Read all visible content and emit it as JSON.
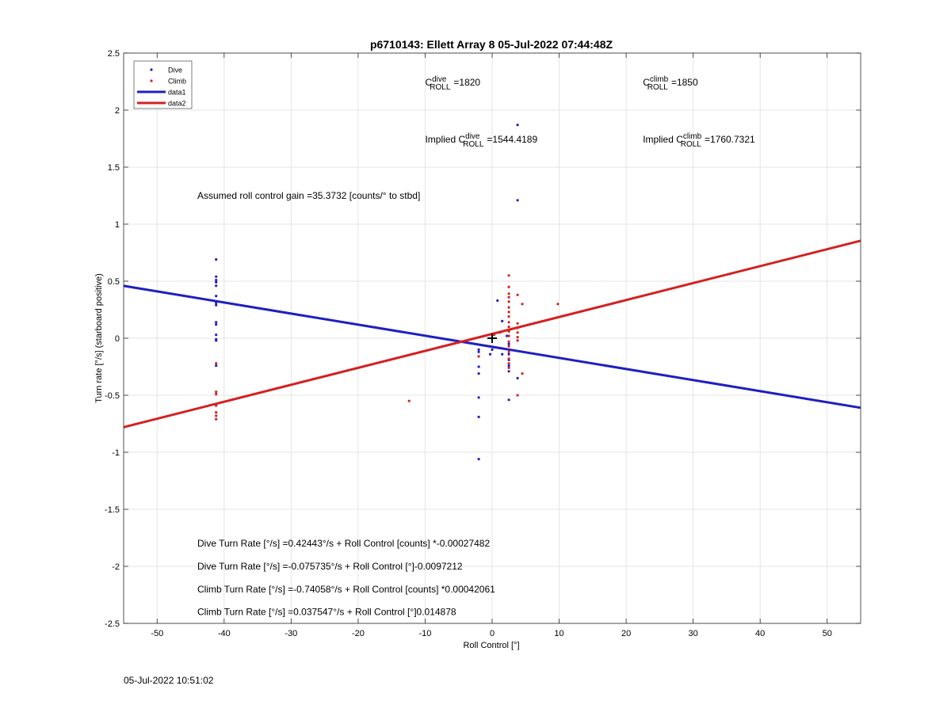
{
  "chart_data": {
    "type": "scatter",
    "title": "p6710143: Ellett Array 8 05-Jul-2022 07:44:48Z",
    "xlabel": "Roll Control [°]",
    "ylabel": "Turn rate [°/s] (starboard positive)",
    "xlim": [
      -55,
      55
    ],
    "ylim": [
      -2.5,
      2.5
    ],
    "xticks": [
      -50,
      -40,
      -30,
      -20,
      -10,
      0,
      10,
      20,
      30,
      40,
      50
    ],
    "yticks": [
      -2.5,
      -2,
      -1.5,
      -1,
      -0.5,
      0,
      0.5,
      1,
      1.5,
      2,
      2.5
    ],
    "grid": true,
    "legend_position": "top-left",
    "series": [
      {
        "name": "Dive",
        "kind": "points",
        "color": "#1f1fbf",
        "points": [
          [
            -41.2,
            0.69
          ],
          [
            -41.2,
            0.54
          ],
          [
            -41.2,
            0.51
          ],
          [
            -41.2,
            0.49
          ],
          [
            -41.2,
            0.46
          ],
          [
            -41.2,
            0.37
          ],
          [
            -41.2,
            0.31
          ],
          [
            -41.2,
            0.29
          ],
          [
            -41.2,
            0.14
          ],
          [
            -41.2,
            0.12
          ],
          [
            -41.2,
            0.03
          ],
          [
            -41.2,
            -0.01
          ],
          [
            -41.2,
            -0.02
          ],
          [
            -41.2,
            -0.24
          ],
          [
            -2,
            -0.1
          ],
          [
            -2,
            -0.12
          ],
          [
            -2,
            -0.25
          ],
          [
            -2,
            -0.31
          ],
          [
            -2,
            -0.52
          ],
          [
            -2,
            -0.69
          ],
          [
            -2,
            -1.06
          ],
          [
            0.8,
            0.33
          ],
          [
            1.5,
            0.15
          ],
          [
            2.2,
            0.02
          ],
          [
            2.5,
            -0.05
          ],
          [
            2.5,
            -0.14
          ],
          [
            2.5,
            -0.19
          ],
          [
            2.5,
            -0.24
          ],
          [
            2.5,
            -0.29
          ],
          [
            2.5,
            -0.54
          ],
          [
            0,
            -0.1
          ],
          [
            -0.3,
            -0.14
          ],
          [
            1.5,
            -0.14
          ],
          [
            3.8,
            1.87
          ],
          [
            3.8,
            1.21
          ],
          [
            3.8,
            -0.35
          ]
        ]
      },
      {
        "name": "Climb",
        "kind": "points",
        "color": "#d42020",
        "points": [
          [
            -41.2,
            -0.22
          ],
          [
            -41.2,
            -0.47
          ],
          [
            -41.2,
            -0.49
          ],
          [
            -41.2,
            -0.59
          ],
          [
            -41.2,
            -0.65
          ],
          [
            -41.2,
            -0.68
          ],
          [
            -41.2,
            -0.71
          ],
          [
            -12.4,
            -0.55
          ],
          [
            -2,
            -0.16
          ],
          [
            2.5,
            0.55
          ],
          [
            2.5,
            0.45
          ],
          [
            2.5,
            0.39
          ],
          [
            2.5,
            0.36
          ],
          [
            2.5,
            0.32
          ],
          [
            2.5,
            0.27
          ],
          [
            2.5,
            0.23
          ],
          [
            2.5,
            0.19
          ],
          [
            2.5,
            0.14
          ],
          [
            2.5,
            0.1
          ],
          [
            2.5,
            0.06
          ],
          [
            2.5,
            0.02
          ],
          [
            2.5,
            -0.03
          ],
          [
            2.5,
            -0.07
          ],
          [
            2.5,
            -0.12
          ],
          [
            2.5,
            -0.18
          ],
          [
            2.5,
            -0.22
          ],
          [
            2.5,
            -0.26
          ],
          [
            3.8,
            0.38
          ],
          [
            3.8,
            0.13
          ],
          [
            3.8,
            0.09
          ],
          [
            3.8,
            0.05
          ],
          [
            3.8,
            0.01
          ],
          [
            3.8,
            -0.02
          ],
          [
            3.8,
            -0.5
          ],
          [
            4.5,
            0.3
          ],
          [
            4.5,
            -0.31
          ],
          [
            9.8,
            0.3
          ],
          [
            0.3,
            0.03
          ],
          [
            1.2,
            0.05
          ]
        ]
      },
      {
        "name": "data1",
        "kind": "line",
        "color": "#1f1fbf",
        "points": [
          [
            -55,
            0.459
          ],
          [
            55,
            -0.61
          ]
        ]
      },
      {
        "name": "data2",
        "kind": "line",
        "color": "#d42020",
        "points": [
          [
            -55,
            -0.78
          ],
          [
            55,
            0.855
          ]
        ]
      }
    ],
    "annotations": {
      "c_roll_dive": {
        "symbol": "C",
        "superscript": "dive",
        "subscript": "ROLL",
        "value": "=1820",
        "x": -10,
        "y": 2.25
      },
      "c_roll_climb": {
        "symbol": "C",
        "superscript": "climb",
        "subscript": "ROLL",
        "value": "=1850",
        "x": 22.5,
        "y": 2.25
      },
      "implied_dive": {
        "prefix": "Implied C",
        "superscript": "dive",
        "subscript": "ROLL",
        "value": "=1544.4189",
        "x": -10,
        "y": 1.75
      },
      "implied_climb": {
        "prefix": "Implied C",
        "superscript": "climb",
        "subscript": "ROLL",
        "value": "=1760.7321",
        "x": 22.5,
        "y": 1.75
      },
      "gain": {
        "text": "Assumed roll control gain =35.3732 [counts/° to stbd]",
        "x": -44,
        "y": 1.25
      },
      "eq1": {
        "text": "Dive Turn Rate [°/s] =0.42443°/s + Roll Control [counts] *-0.00027482",
        "x": -44,
        "y": -1.8
      },
      "eq2": {
        "text": "Dive Turn Rate [°/s] =-0.075735°/s + Roll Control [°]-0.0097212",
        "x": -44,
        "y": -2.0
      },
      "eq3": {
        "text": "Climb Turn Rate [°/s] =-0.74058°/s + Roll Control [counts] *0.00042061",
        "x": -44,
        "y": -2.2
      },
      "eq4": {
        "text": "Climb Turn Rate [°/s] =0.037547°/s + Roll Control [°]0.014878",
        "x": -44,
        "y": -2.4
      },
      "cross_marker": [
        0,
        0
      ]
    }
  },
  "footer": {
    "timestamp": "05-Jul-2022 10:51:02"
  }
}
